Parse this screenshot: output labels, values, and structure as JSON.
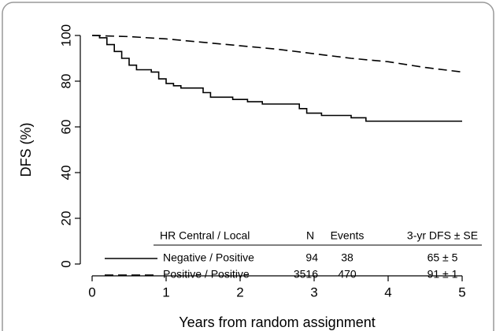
{
  "chart_data": {
    "type": "line",
    "x_label": "Years from random assignment",
    "y_label": "DFS (%)",
    "xlim": [
      0,
      5
    ],
    "ylim": [
      0,
      100
    ],
    "xticks": [
      0,
      1,
      2,
      3,
      4,
      5
    ],
    "yticks": [
      0,
      20,
      40,
      60,
      80,
      100
    ],
    "series": [
      {
        "name": "Negative / Positive",
        "color": "#000000",
        "line_style": "solid",
        "step": true,
        "x": [
          0,
          0.1,
          0.2,
          0.3,
          0.4,
          0.5,
          0.6,
          0.8,
          0.9,
          1.0,
          1.1,
          1.2,
          1.5,
          1.6,
          1.9,
          2.1,
          2.3,
          2.8,
          2.9,
          3.1,
          3.5,
          3.7,
          5
        ],
        "values": [
          100,
          99,
          96,
          93,
          90,
          87,
          85,
          84,
          81,
          79,
          78,
          77,
          75,
          73,
          72,
          71,
          70,
          68,
          66,
          65,
          64,
          62.5,
          62.5
        ]
      },
      {
        "name": "Positive / Positive",
        "color": "#000000",
        "line_style": "dashed",
        "step": false,
        "x": [
          0,
          0.5,
          1,
          1.5,
          2,
          2.5,
          3,
          3.5,
          4,
          4.5,
          5
        ],
        "values": [
          100,
          99.5,
          98.5,
          97,
          95.5,
          94,
          92,
          90,
          88.5,
          86,
          84
        ]
      }
    ],
    "legend_table": {
      "headers": [
        "HR Central / Local",
        "N",
        "Events",
        "3-yr DFS ± SE"
      ],
      "rows": [
        {
          "n": 94,
          "events": 38,
          "dfs": "65 ± 5"
        },
        {
          "n": 3516,
          "events": 470,
          "dfs": "91 ± 1"
        }
      ]
    }
  }
}
